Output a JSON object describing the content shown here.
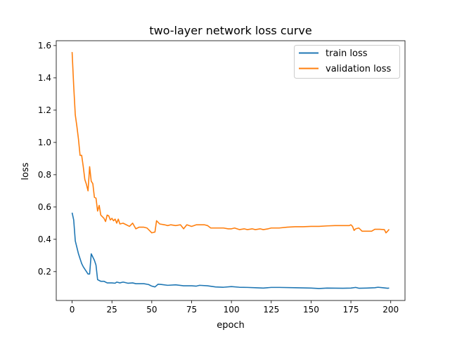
{
  "chart_data": {
    "type": "line",
    "title": "two-layer network loss curve",
    "xlabel": "epoch",
    "ylabel": "loss",
    "xlim": [
      -9.95,
      208.95
    ],
    "ylim": [
      0.021,
      1.63
    ],
    "xticks": [
      0,
      25,
      50,
      75,
      100,
      125,
      150,
      175,
      200
    ],
    "yticks": [
      0.2,
      0.4,
      0.6,
      0.8,
      1.0,
      1.2,
      1.4,
      1.6
    ],
    "xtick_labels": [
      "0",
      "25",
      "50",
      "75",
      "100",
      "125",
      "150",
      "175",
      "200"
    ],
    "ytick_labels": [
      "0.2",
      "0.4",
      "0.6",
      "0.8",
      "1.0",
      "1.2",
      "1.4",
      "1.6"
    ],
    "grid": false,
    "legend_position": "top-right",
    "series": [
      {
        "name": "train loss",
        "color": "#1f77b4",
        "points": [
          [
            0,
            0.565
          ],
          [
            1,
            0.52
          ],
          [
            2,
            0.39
          ],
          [
            3,
            0.35
          ],
          [
            4,
            0.31
          ],
          [
            5,
            0.28
          ],
          [
            6,
            0.25
          ],
          [
            7,
            0.23
          ],
          [
            8,
            0.215
          ],
          [
            9,
            0.2
          ],
          [
            10,
            0.185
          ],
          [
            11,
            0.185
          ],
          [
            12,
            0.31
          ],
          [
            13,
            0.29
          ],
          [
            14,
            0.27
          ],
          [
            15,
            0.24
          ],
          [
            16,
            0.15
          ],
          [
            17,
            0.145
          ],
          [
            18,
            0.14
          ],
          [
            20,
            0.14
          ],
          [
            22,
            0.13
          ],
          [
            25,
            0.13
          ],
          [
            27,
            0.128
          ],
          [
            28,
            0.135
          ],
          [
            30,
            0.13
          ],
          [
            32,
            0.135
          ],
          [
            35,
            0.128
          ],
          [
            38,
            0.13
          ],
          [
            40,
            0.125
          ],
          [
            42,
            0.125
          ],
          [
            45,
            0.125
          ],
          [
            48,
            0.12
          ],
          [
            50,
            0.11
          ],
          [
            52,
            0.105
          ],
          [
            54,
            0.122
          ],
          [
            56,
            0.12
          ],
          [
            60,
            0.115
          ],
          [
            65,
            0.118
          ],
          [
            70,
            0.112
          ],
          [
            75,
            0.112
          ],
          [
            78,
            0.11
          ],
          [
            80,
            0.115
          ],
          [
            85,
            0.112
          ],
          [
            90,
            0.105
          ],
          [
            95,
            0.103
          ],
          [
            100,
            0.107
          ],
          [
            105,
            0.103
          ],
          [
            110,
            0.102
          ],
          [
            115,
            0.1
          ],
          [
            120,
            0.098
          ],
          [
            125,
            0.102
          ],
          [
            130,
            0.102
          ],
          [
            140,
            0.1
          ],
          [
            150,
            0.098
          ],
          [
            155,
            0.095
          ],
          [
            160,
            0.098
          ],
          [
            170,
            0.097
          ],
          [
            175,
            0.098
          ],
          [
            178,
            0.102
          ],
          [
            180,
            0.097
          ],
          [
            185,
            0.098
          ],
          [
            190,
            0.1
          ],
          [
            192,
            0.103
          ],
          [
            195,
            0.1
          ],
          [
            198,
            0.097
          ],
          [
            199,
            0.098
          ]
        ]
      },
      {
        "name": "validation loss",
        "color": "#ff7f0e",
        "points": [
          [
            0,
            1.56
          ],
          [
            1,
            1.35
          ],
          [
            2,
            1.17
          ],
          [
            3,
            1.1
          ],
          [
            4,
            1.02
          ],
          [
            5,
            0.92
          ],
          [
            6,
            0.92
          ],
          [
            7,
            0.85
          ],
          [
            8,
            0.77
          ],
          [
            9,
            0.74
          ],
          [
            10,
            0.7
          ],
          [
            11,
            0.85
          ],
          [
            12,
            0.76
          ],
          [
            13,
            0.745
          ],
          [
            14,
            0.66
          ],
          [
            15,
            0.655
          ],
          [
            16,
            0.575
          ],
          [
            17,
            0.61
          ],
          [
            18,
            0.55
          ],
          [
            19,
            0.54
          ],
          [
            20,
            0.53
          ],
          [
            21,
            0.51
          ],
          [
            22,
            0.55
          ],
          [
            23,
            0.545
          ],
          [
            24,
            0.52
          ],
          [
            25,
            0.53
          ],
          [
            26,
            0.515
          ],
          [
            27,
            0.525
          ],
          [
            28,
            0.5
          ],
          [
            29,
            0.525
          ],
          [
            30,
            0.495
          ],
          [
            32,
            0.5
          ],
          [
            34,
            0.49
          ],
          [
            36,
            0.48
          ],
          [
            38,
            0.5
          ],
          [
            40,
            0.465
          ],
          [
            42,
            0.475
          ],
          [
            45,
            0.475
          ],
          [
            47,
            0.47
          ],
          [
            49,
            0.45
          ],
          [
            50,
            0.44
          ],
          [
            52,
            0.445
          ],
          [
            53,
            0.515
          ],
          [
            55,
            0.495
          ],
          [
            58,
            0.49
          ],
          [
            60,
            0.485
          ],
          [
            62,
            0.49
          ],
          [
            65,
            0.485
          ],
          [
            68,
            0.49
          ],
          [
            70,
            0.465
          ],
          [
            72,
            0.49
          ],
          [
            75,
            0.48
          ],
          [
            78,
            0.49
          ],
          [
            80,
            0.49
          ],
          [
            83,
            0.49
          ],
          [
            85,
            0.485
          ],
          [
            87,
            0.47
          ],
          [
            90,
            0.47
          ],
          [
            95,
            0.47
          ],
          [
            98,
            0.465
          ],
          [
            100,
            0.465
          ],
          [
            102,
            0.47
          ],
          [
            105,
            0.46
          ],
          [
            108,
            0.465
          ],
          [
            110,
            0.46
          ],
          [
            113,
            0.465
          ],
          [
            115,
            0.46
          ],
          [
            118,
            0.465
          ],
          [
            120,
            0.46
          ],
          [
            123,
            0.465
          ],
          [
            125,
            0.47
          ],
          [
            130,
            0.47
          ],
          [
            135,
            0.475
          ],
          [
            140,
            0.478
          ],
          [
            145,
            0.478
          ],
          [
            150,
            0.48
          ],
          [
            155,
            0.48
          ],
          [
            160,
            0.483
          ],
          [
            165,
            0.485
          ],
          [
            170,
            0.485
          ],
          [
            174,
            0.485
          ],
          [
            175,
            0.49
          ],
          [
            176,
            0.48
          ],
          [
            177,
            0.455
          ],
          [
            178,
            0.465
          ],
          [
            180,
            0.47
          ],
          [
            182,
            0.45
          ],
          [
            185,
            0.45
          ],
          [
            188,
            0.45
          ],
          [
            190,
            0.462
          ],
          [
            193,
            0.462
          ],
          [
            196,
            0.46
          ],
          [
            197,
            0.44
          ],
          [
            198,
            0.45
          ],
          [
            199,
            0.462
          ]
        ]
      }
    ]
  }
}
